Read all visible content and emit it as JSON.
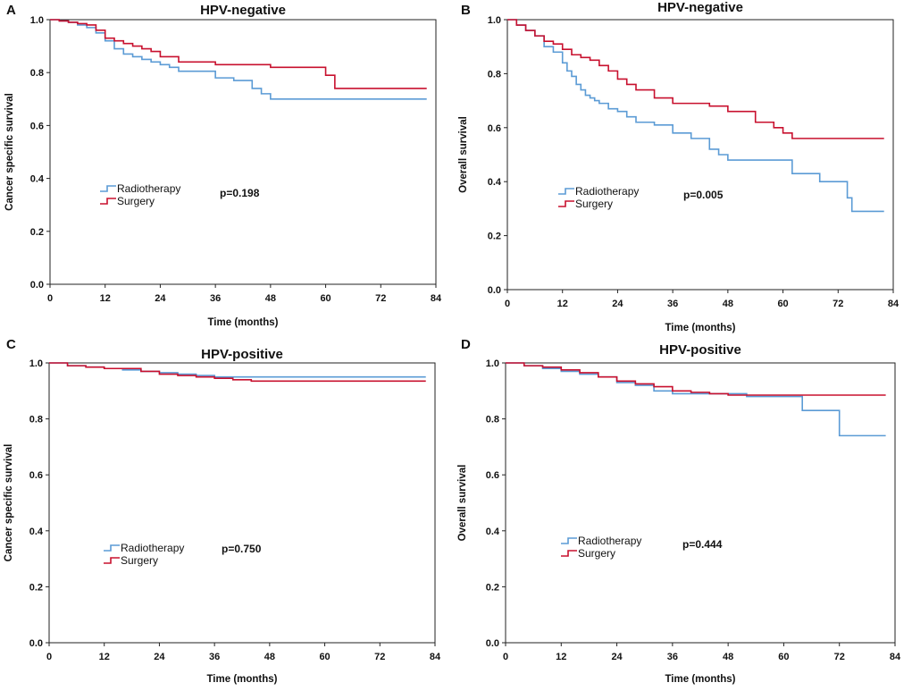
{
  "colors": {
    "Radiotherapy": "#5b9bd5",
    "Surgery": "#c8102e"
  },
  "chart_data": [
    {
      "panel": "A",
      "type": "line",
      "title": "HPV-negative",
      "xlabel": "Time (months)",
      "ylabel": "Cancer specific survival",
      "xlim": [
        0,
        84
      ],
      "ylim": [
        0,
        1.0
      ],
      "xticks": [
        0,
        12,
        24,
        36,
        48,
        60,
        72,
        84
      ],
      "yticks": [
        0.0,
        0.2,
        0.4,
        0.6,
        0.8,
        1.0
      ],
      "p_value": "p=0.198",
      "legend": [
        "Radiotherapy",
        "Surgery"
      ],
      "series": [
        {
          "name": "Radiotherapy",
          "x": [
            0,
            2,
            4,
            6,
            8,
            10,
            12,
            14,
            16,
            18,
            20,
            22,
            24,
            26,
            28,
            36,
            40,
            44,
            46,
            48,
            82
          ],
          "y": [
            1.0,
            0.995,
            0.99,
            0.98,
            0.97,
            0.95,
            0.92,
            0.89,
            0.87,
            0.86,
            0.85,
            0.84,
            0.83,
            0.82,
            0.805,
            0.78,
            0.77,
            0.74,
            0.72,
            0.7,
            0.7
          ]
        },
        {
          "name": "Surgery",
          "x": [
            0,
            2,
            4,
            6,
            8,
            10,
            12,
            14,
            16,
            18,
            20,
            22,
            24,
            28,
            36,
            44,
            48,
            56,
            60,
            62,
            82
          ],
          "y": [
            1.0,
            0.995,
            0.99,
            0.985,
            0.98,
            0.96,
            0.93,
            0.92,
            0.91,
            0.9,
            0.89,
            0.88,
            0.86,
            0.84,
            0.83,
            0.83,
            0.82,
            0.82,
            0.79,
            0.74,
            0.74
          ]
        }
      ]
    },
    {
      "panel": "B",
      "type": "line",
      "title": "HPV-negative",
      "xlabel": "Time (months)",
      "ylabel": "Overall survival",
      "xlim": [
        0,
        84
      ],
      "ylim": [
        0,
        1.0
      ],
      "xticks": [
        0,
        12,
        24,
        36,
        48,
        60,
        72,
        84
      ],
      "yticks": [
        0.0,
        0.2,
        0.4,
        0.6,
        0.8,
        1.0
      ],
      "p_value": "p=0.005",
      "legend": [
        "Radiotherapy",
        "Surgery"
      ],
      "series": [
        {
          "name": "Radiotherapy",
          "x": [
            0,
            2,
            4,
            6,
            8,
            10,
            12,
            13,
            14,
            15,
            16,
            17,
            18,
            19,
            20,
            22,
            24,
            26,
            28,
            32,
            36,
            40,
            44,
            46,
            48,
            62,
            64,
            68,
            74,
            75,
            82
          ],
          "y": [
            1.0,
            0.98,
            0.96,
            0.94,
            0.9,
            0.88,
            0.84,
            0.81,
            0.79,
            0.76,
            0.74,
            0.72,
            0.71,
            0.7,
            0.69,
            0.67,
            0.66,
            0.64,
            0.62,
            0.61,
            0.58,
            0.56,
            0.52,
            0.5,
            0.48,
            0.43,
            0.43,
            0.4,
            0.34,
            0.29,
            0.29
          ]
        },
        {
          "name": "Surgery",
          "x": [
            0,
            2,
            4,
            6,
            8,
            10,
            12,
            14,
            16,
            18,
            20,
            22,
            24,
            26,
            28,
            32,
            36,
            44,
            48,
            54,
            58,
            60,
            62,
            82
          ],
          "y": [
            1.0,
            0.98,
            0.96,
            0.94,
            0.92,
            0.91,
            0.89,
            0.87,
            0.86,
            0.85,
            0.83,
            0.81,
            0.78,
            0.76,
            0.74,
            0.71,
            0.69,
            0.68,
            0.66,
            0.62,
            0.6,
            0.58,
            0.56,
            0.56
          ]
        }
      ]
    },
    {
      "panel": "C",
      "type": "line",
      "title": "HPV-positive",
      "xlabel": "Time (months)",
      "ylabel": "Cancer specific survival",
      "xlim": [
        0,
        84
      ],
      "ylim": [
        0,
        1.0
      ],
      "xticks": [
        0,
        12,
        24,
        36,
        48,
        60,
        72,
        84
      ],
      "yticks": [
        0.0,
        0.2,
        0.4,
        0.6,
        0.8,
        1.0
      ],
      "p_value": "p=0.750",
      "legend": [
        "Radiotherapy",
        "Surgery"
      ],
      "series": [
        {
          "name": "Radiotherapy",
          "x": [
            0,
            4,
            8,
            12,
            16,
            20,
            24,
            28,
            32,
            36,
            48,
            82
          ],
          "y": [
            1.0,
            0.99,
            0.985,
            0.98,
            0.975,
            0.97,
            0.965,
            0.96,
            0.955,
            0.95,
            0.95,
            0.95
          ]
        },
        {
          "name": "Surgery",
          "x": [
            0,
            4,
            8,
            12,
            16,
            20,
            24,
            28,
            32,
            36,
            40,
            44,
            82
          ],
          "y": [
            1.0,
            0.99,
            0.985,
            0.98,
            0.98,
            0.97,
            0.96,
            0.955,
            0.95,
            0.945,
            0.94,
            0.935,
            0.935
          ]
        }
      ]
    },
    {
      "panel": "D",
      "type": "line",
      "title": "HPV-positive",
      "xlabel": "Time (months)",
      "ylabel": "Overall survival",
      "xlim": [
        0,
        84
      ],
      "ylim": [
        0,
        1.0
      ],
      "xticks": [
        0,
        12,
        24,
        36,
        48,
        60,
        72,
        84
      ],
      "yticks": [
        0.0,
        0.2,
        0.4,
        0.6,
        0.8,
        1.0
      ],
      "p_value": "p=0.444",
      "legend": [
        "Radiotherapy",
        "Surgery"
      ],
      "series": [
        {
          "name": "Radiotherapy",
          "x": [
            0,
            4,
            8,
            12,
            16,
            20,
            24,
            28,
            32,
            36,
            48,
            52,
            64,
            72,
            82
          ],
          "y": [
            1.0,
            0.99,
            0.98,
            0.97,
            0.96,
            0.95,
            0.93,
            0.92,
            0.9,
            0.89,
            0.89,
            0.88,
            0.83,
            0.74,
            0.74
          ]
        },
        {
          "name": "Surgery",
          "x": [
            0,
            4,
            8,
            12,
            16,
            20,
            24,
            28,
            32,
            36,
            40,
            44,
            48,
            82
          ],
          "y": [
            1.0,
            0.99,
            0.985,
            0.975,
            0.965,
            0.95,
            0.935,
            0.925,
            0.915,
            0.9,
            0.895,
            0.89,
            0.885,
            0.885
          ]
        }
      ]
    }
  ]
}
